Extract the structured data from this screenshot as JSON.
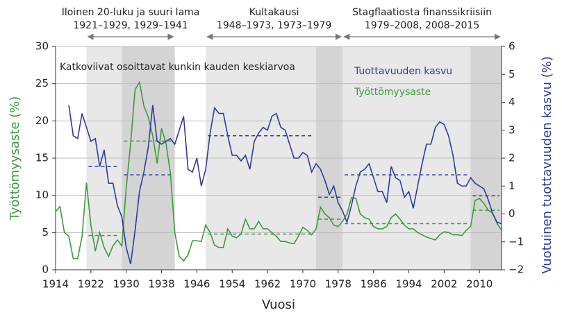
{
  "chart_data": {
    "type": "line",
    "annotation": "Katkoviivat osoittavat kunkin kauden keskiarvoa",
    "xlabel": "Vuosi",
    "ylabel": "Työttömyysaste (%)",
    "y2label": "Vuotuinen tuottavuuden kasvu (%)",
    "xlim": [
      1914,
      2015
    ],
    "xticks": [
      1914,
      1922,
      1930,
      1938,
      1946,
      1954,
      1962,
      1970,
      1978,
      1986,
      1994,
      2002,
      2010
    ],
    "ylim": [
      0,
      30
    ],
    "yticks": [
      0,
      5,
      10,
      15,
      20,
      25,
      30
    ],
    "y2lim": [
      -2,
      6
    ],
    "y2ticks": [
      {
        "value": -2,
        "label": "−2"
      },
      {
        "value": -1,
        "label": "−1"
      },
      0,
      1,
      2,
      3,
      4,
      5,
      6
    ],
    "grid": true,
    "x": [
      1914,
      1915,
      1916,
      1917,
      1918,
      1919,
      1920,
      1921,
      1922,
      1923,
      1924,
      1925,
      1926,
      1927,
      1928,
      1929,
      1930,
      1931,
      1932,
      1933,
      1934,
      1935,
      1936,
      1937,
      1938,
      1939,
      1940,
      1941,
      1942,
      1943,
      1944,
      1945,
      1946,
      1947,
      1948,
      1949,
      1950,
      1951,
      1952,
      1953,
      1954,
      1955,
      1956,
      1957,
      1958,
      1959,
      1960,
      1961,
      1962,
      1963,
      1964,
      1965,
      1966,
      1967,
      1968,
      1969,
      1970,
      1971,
      1972,
      1973,
      1974,
      1975,
      1976,
      1977,
      1978,
      1979,
      1980,
      1981,
      1982,
      1983,
      1984,
      1985,
      1986,
      1987,
      1988,
      1989,
      1990,
      1991,
      1992,
      1993,
      1994,
      1995,
      1996,
      1997,
      1998,
      1999,
      2000,
      2001,
      2002,
      2003,
      2004,
      2005,
      2006,
      2007,
      2008,
      2009,
      2010,
      2011,
      2012,
      2013,
      2014,
      2015
    ],
    "series": [
      {
        "name": "Työttömyysaste",
        "color": "#3c9a3c",
        "axis": "y",
        "values": [
          7.8,
          8.5,
          5,
          4.5,
          1.5,
          1.5,
          4.5,
          11.7,
          6,
          2.5,
          5,
          3,
          1.8,
          3.2,
          4,
          3.2,
          11,
          17,
          24.2,
          25.2,
          22,
          20.5,
          18,
          14.3,
          19,
          17,
          13,
          5,
          1.8,
          1.2,
          2,
          3.9,
          3.9,
          3.8,
          6,
          5,
          3.3,
          3,
          3,
          5.5,
          4.5,
          4.3,
          4.8,
          6.8,
          5.5,
          5.5,
          6.5,
          5.5,
          5.5,
          5,
          4.5,
          3.8,
          3.8,
          3.6,
          3.5,
          4.5,
          5.7,
          5.3,
          4.7,
          5.5,
          8.4,
          7.5,
          7,
          6,
          5.8,
          6.5,
          7.5,
          9.7,
          9.6,
          7.5,
          7,
          6.8,
          5.8,
          5.5,
          5.5,
          5.8,
          7,
          7.5,
          6.8,
          6,
          5.5,
          5.5,
          5,
          4.7,
          4.4,
          4.2,
          4,
          4.7,
          5.1,
          5,
          4.7,
          4.7,
          4.6,
          5.3,
          5.8,
          9.3,
          9.6,
          8.9,
          8,
          7.6,
          6.2,
          5.3
        ]
      },
      {
        "name": "Tuottavuuden kasvu",
        "color": "#2e3a9c",
        "axis": "y2",
        "values": [
          null,
          null,
          null,
          3.9,
          2.8,
          2.7,
          3.6,
          3.1,
          2.6,
          2.7,
          1.7,
          2.3,
          1.1,
          1.1,
          0.3,
          -0.1,
          -1.2,
          -1.8,
          -0.6,
          0.8,
          1.5,
          2.4,
          3.9,
          2.6,
          2.5,
          2.6,
          2.7,
          2.5,
          3,
          3.5,
          1.6,
          1.5,
          2,
          1,
          1.6,
          2.9,
          3.8,
          3.6,
          3.6,
          2.8,
          2.1,
          2.1,
          1.9,
          2.1,
          1.6,
          2.6,
          2.9,
          3.1,
          3,
          3.5,
          3.6,
          3.1,
          3,
          2.5,
          2,
          2,
          2.2,
          2.1,
          1.5,
          1.8,
          1.6,
          1.2,
          0.7,
          1,
          0.4,
          0.1,
          -0.3,
          0.3,
          1,
          1.5,
          1.6,
          1.8,
          1.3,
          0.8,
          0.8,
          0.4,
          1.7,
          1.3,
          1.2,
          0.6,
          0.8,
          0.2,
          1,
          1.8,
          2.5,
          2.5,
          3.1,
          3.3,
          3.2,
          2.8,
          2.1,
          1.1,
          1,
          1,
          1.3,
          1.1,
          1,
          0.9,
          0.5,
          0,
          -0.3,
          -0.35
        ]
      }
    ],
    "periods": [
      {
        "start": 1921,
        "end": 1929,
        "unemployment_mean": 4.6,
        "productivity_mean": 1.7
      },
      {
        "start": 1929,
        "end": 1941,
        "unemployment_mean": 17.3,
        "productivity_mean": 1.4
      },
      {
        "start": 1948,
        "end": 1973,
        "unemployment_mean": 4.8,
        "productivity_mean": 2.8
      },
      {
        "start": 1973,
        "end": 1979,
        "unemployment_mean": 6.8,
        "productivity_mean": 0.6
      },
      {
        "start": 1979,
        "end": 2008,
        "unemployment_mean": 6.2,
        "productivity_mean": 1.4
      },
      {
        "start": 2008,
        "end": 2015,
        "unemployment_mean": 8.0,
        "productivity_mean": 0.65
      }
    ],
    "eras": [
      {
        "title": "Iloinen 20-luku ja suuri lama",
        "subtitle": "1921–1929, 1929–1941",
        "start": 1921,
        "end": 1941
      },
      {
        "title": "Kultakausi",
        "subtitle": "1948–1973, 1973–1979",
        "start": 1948,
        "end": 1979
      },
      {
        "title": "Stagflaatiosta finanssikriisiin",
        "subtitle": "1979–2008, 2008–2015",
        "start": 1979,
        "end": 2015
      }
    ]
  }
}
